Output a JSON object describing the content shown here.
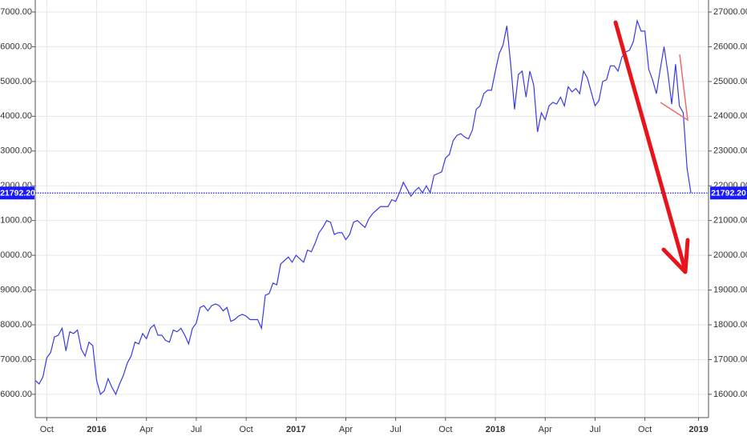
{
  "chart_data": {
    "type": "line",
    "color": "#3a3ae8",
    "grid": true,
    "ylim": [
      15330,
      27345
    ],
    "yticks": [
      {
        "value": 16000,
        "label": "16000.00"
      },
      {
        "value": 17000,
        "label": "17000.00"
      },
      {
        "value": 18000,
        "label": "18000.00"
      },
      {
        "value": 19000,
        "label": "19000.00"
      },
      {
        "value": 20000,
        "label": "20000.00"
      },
      {
        "value": 21000,
        "label": "21000.00"
      },
      {
        "value": 22000,
        "label": "22000.00"
      },
      {
        "value": 23000,
        "label": "23000.00"
      },
      {
        "value": 24000,
        "label": "24000.00"
      },
      {
        "value": 25000,
        "label": "25000.00"
      },
      {
        "value": 26000,
        "label": "26000.00"
      },
      {
        "value": 27000,
        "label": "27000.00"
      }
    ],
    "reference_line": {
      "value": 21792.2,
      "label": "21792.20"
    },
    "categories": [
      null,
      null,
      null,
      "Oct",
      null,
      null,
      null,
      null,
      null,
      null,
      null,
      null,
      null,
      null,
      null,
      null,
      "2016",
      null,
      null,
      null,
      null,
      null,
      null,
      null,
      null,
      null,
      null,
      null,
      null,
      "Apr",
      null,
      null,
      null,
      null,
      null,
      null,
      null,
      null,
      null,
      null,
      null,
      null,
      "Jul",
      null,
      null,
      null,
      null,
      null,
      null,
      null,
      null,
      null,
      null,
      null,
      null,
      "Oct",
      null,
      null,
      null,
      null,
      null,
      null,
      null,
      null,
      null,
      null,
      null,
      null,
      "2017",
      null,
      null,
      null,
      null,
      null,
      null,
      null,
      null,
      null,
      null,
      null,
      null,
      "Apr",
      null,
      null,
      null,
      null,
      null,
      null,
      null,
      null,
      null,
      null,
      null,
      null,
      "Jul",
      null,
      null,
      null,
      null,
      null,
      null,
      null,
      null,
      null,
      null,
      null,
      null,
      "Oct",
      null,
      null,
      null,
      null,
      null,
      null,
      null,
      null,
      null,
      null,
      null,
      null,
      "2018",
      null,
      null,
      null,
      null,
      null,
      null,
      null,
      null,
      null,
      null,
      null,
      null,
      "Apr",
      null,
      null,
      null,
      null,
      null,
      null,
      null,
      null,
      null,
      null,
      null,
      null,
      "Jul",
      null,
      null,
      null,
      null,
      null,
      null,
      null,
      null,
      null,
      null,
      null,
      null,
      "Oct",
      null,
      null,
      null,
      null,
      null,
      null,
      null,
      null,
      null,
      null,
      null,
      null,
      null,
      "2019"
    ],
    "values": [
      16400,
      16300,
      16500,
      17050,
      17200,
      17650,
      17700,
      17900,
      17250,
      17800,
      17750,
      17850,
      17300,
      17100,
      17500,
      17400,
      16400,
      16000,
      16100,
      16450,
      16200,
      16000,
      16300,
      16550,
      16900,
      17100,
      17500,
      17450,
      17750,
      17600,
      17900,
      18000,
      17700,
      17700,
      17550,
      17500,
      17850,
      17800,
      17900,
      17700,
      17450,
      17900,
      18050,
      18500,
      18550,
      18400,
      18550,
      18600,
      18550,
      18400,
      18500,
      18100,
      18150,
      18250,
      18300,
      18250,
      18150,
      18150,
      18150,
      17900,
      18850,
      18900,
      19200,
      19150,
      19750,
      19850,
      19950,
      19800,
      20000,
      19900,
      19800,
      20150,
      20100,
      20350,
      20650,
      20800,
      21000,
      20950,
      20600,
      20650,
      20650,
      20450,
      20600,
      20950,
      21000,
      20900,
      20800,
      21050,
      21200,
      21300,
      21400,
      21400,
      21400,
      21600,
      21550,
      21800,
      22100,
      21900,
      21700,
      21850,
      21950,
      21800,
      22000,
      21800,
      22300,
      22350,
      22400,
      22800,
      22900,
      23300,
      23450,
      23500,
      23400,
      23350,
      23600,
      24200,
      24300,
      24650,
      24750,
      24750,
      25300,
      25800,
      26050,
      26600,
      25500,
      24200,
      25200,
      25300,
      24550,
      25300,
      24900,
      23550,
      24100,
      23900,
      24300,
      24400,
      24350,
      24550,
      24300,
      24850,
      24700,
      24800,
      24650,
      25300,
      25100,
      24700,
      24300,
      24450,
      25000,
      25050,
      25450,
      25450,
      25300,
      25700,
      25850,
      25900,
      26150,
      26750,
      26450,
      26450,
      25350,
      25050,
      24650,
      25350,
      26000,
      25250,
      24350,
      25500,
      24300,
      24100,
      22500,
      21800,
      null,
      null
    ]
  }
}
